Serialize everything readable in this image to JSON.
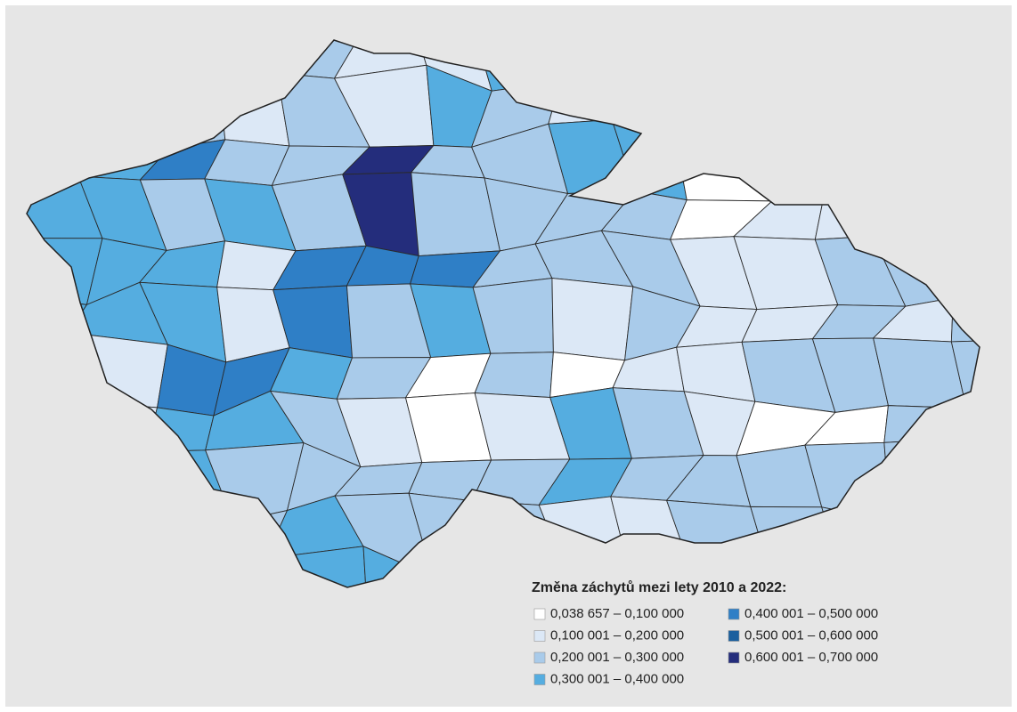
{
  "legend": {
    "title": "Změna záchytů mezi lety 2010 a 2022:",
    "items": [
      {
        "label": "0,038 657 – 0,100 000",
        "color": "#ffffff"
      },
      {
        "label": "0,100 001 – 0,200 000",
        "color": "#dce8f6"
      },
      {
        "label": "0,200 001 – 0,300 000",
        "color": "#a9cbea"
      },
      {
        "label": "0,300 001 – 0,400 000",
        "color": "#55ade0"
      },
      {
        "label": "0,400 001 – 0,500 000",
        "color": "#2f7fc6"
      },
      {
        "label": "0,500 001 – 0,600 000",
        "color": "#1a5f9e"
      },
      {
        "label": "0,600 001 – 0,700 000",
        "color": "#242d7c"
      }
    ]
  }
}
